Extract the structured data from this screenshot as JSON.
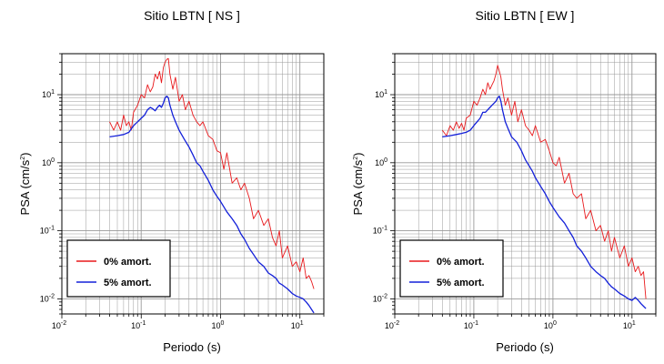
{
  "colors": {
    "undamped": "#e8191c",
    "damped": "#1320d9",
    "grid": "#999999",
    "frame": "#000000"
  },
  "chart_data": [
    {
      "type": "line",
      "title": "Sitio LBTN [ NS ]",
      "xlabel": "Periodo (s)",
      "ylabel": "PSA (cm/s2)",
      "ylabel_base": "PSA (cm/s",
      "ylabel_sup": "2",
      "ylabel_tail": ")",
      "xscale": "log",
      "yscale": "log",
      "xlim": [
        0.01,
        20
      ],
      "ylim": [
        0.006,
        40
      ],
      "x_ticks": [
        {
          "base": "10",
          "exp": "-2"
        },
        {
          "base": "10",
          "exp": "-1"
        },
        {
          "base": "10",
          "exp": "0"
        },
        {
          "base": "10",
          "exp": "1"
        }
      ],
      "y_ticks": [
        {
          "base": "10",
          "exp": "-2"
        },
        {
          "base": "10",
          "exp": "-1"
        },
        {
          "base": "10",
          "exp": "0"
        },
        {
          "base": "10",
          "exp": "1"
        }
      ],
      "grid": true,
      "legend": "bottom-left",
      "series": [
        {
          "name": "0% amort.",
          "color": "#e8191c",
          "x": [
            0.04,
            0.045,
            0.05,
            0.055,
            0.06,
            0.065,
            0.07,
            0.075,
            0.08,
            0.09,
            0.1,
            0.11,
            0.12,
            0.13,
            0.14,
            0.15,
            0.16,
            0.17,
            0.18,
            0.19,
            0.2,
            0.21,
            0.22,
            0.23,
            0.25,
            0.27,
            0.3,
            0.33,
            0.36,
            0.4,
            0.45,
            0.5,
            0.55,
            0.6,
            0.7,
            0.8,
            0.9,
            1.0,
            1.1,
            1.2,
            1.4,
            1.6,
            1.8,
            2.0,
            2.3,
            2.6,
            3.0,
            3.5,
            4.0,
            4.5,
            5.0,
            5.5,
            6,
            7,
            8,
            9,
            10,
            11,
            12,
            13,
            14,
            15
          ],
          "y": [
            4,
            3,
            4,
            3,
            5,
            3.5,
            4,
            3,
            5.5,
            7,
            10,
            9,
            14,
            11,
            13,
            20,
            17,
            22,
            15,
            25,
            30,
            33,
            34,
            20,
            12,
            18,
            8,
            10,
            6,
            8,
            5,
            4,
            3.5,
            4,
            2.5,
            2.2,
            1.5,
            1.4,
            0.8,
            1.4,
            0.5,
            0.6,
            0.4,
            0.5,
            0.3,
            0.15,
            0.2,
            0.12,
            0.15,
            0.08,
            0.06,
            0.1,
            0.04,
            0.06,
            0.03,
            0.035,
            0.025,
            0.04,
            0.02,
            0.022,
            0.018,
            0.014
          ]
        },
        {
          "name": "5% amort.",
          "color": "#1320d9",
          "x": [
            0.04,
            0.05,
            0.06,
            0.07,
            0.08,
            0.09,
            0.1,
            0.11,
            0.12,
            0.13,
            0.14,
            0.15,
            0.16,
            0.17,
            0.18,
            0.19,
            0.2,
            0.21,
            0.22,
            0.23,
            0.25,
            0.27,
            0.3,
            0.35,
            0.4,
            0.45,
            0.5,
            0.55,
            0.6,
            0.7,
            0.8,
            0.9,
            1.0,
            1.2,
            1.4,
            1.6,
            1.8,
            2.0,
            2.3,
            2.6,
            3.0,
            3.5,
            4.0,
            4.5,
            5.0,
            5.5,
            6,
            7,
            8,
            9,
            10,
            11,
            12,
            13,
            14,
            15
          ],
          "y": [
            2.4,
            2.5,
            2.6,
            2.8,
            3.5,
            4,
            4.5,
            5,
            6,
            6.5,
            6.2,
            5.8,
            6.5,
            7,
            6.5,
            7.5,
            9,
            9.5,
            9,
            7,
            5,
            4,
            3,
            2.2,
            1.7,
            1.3,
            1.0,
            0.9,
            0.75,
            0.55,
            0.4,
            0.32,
            0.27,
            0.19,
            0.15,
            0.12,
            0.09,
            0.075,
            0.055,
            0.045,
            0.035,
            0.03,
            0.024,
            0.022,
            0.02,
            0.017,
            0.016,
            0.014,
            0.012,
            0.011,
            0.0105,
            0.01,
            0.009,
            0.008,
            0.007,
            0.0062
          ]
        }
      ]
    },
    {
      "type": "line",
      "title": "Sitio LBTN [ EW ]",
      "xlabel": "Periodo (s)",
      "ylabel": "PSA (cm/s2)",
      "ylabel_base": "PSA (cm/s",
      "ylabel_sup": "2",
      "ylabel_tail": ")",
      "xscale": "log",
      "yscale": "log",
      "xlim": [
        0.01,
        20
      ],
      "ylim": [
        0.006,
        40
      ],
      "x_ticks": [
        {
          "base": "10",
          "exp": "-2"
        },
        {
          "base": "10",
          "exp": "-1"
        },
        {
          "base": "10",
          "exp": "0"
        },
        {
          "base": "10",
          "exp": "1"
        }
      ],
      "y_ticks": [
        {
          "base": "10",
          "exp": "-2"
        },
        {
          "base": "10",
          "exp": "-1"
        },
        {
          "base": "10",
          "exp": "0"
        },
        {
          "base": "10",
          "exp": "1"
        }
      ],
      "grid": true,
      "legend": "bottom-left",
      "series": [
        {
          "name": "0% amort.",
          "color": "#e8191c",
          "x": [
            0.04,
            0.045,
            0.05,
            0.055,
            0.06,
            0.065,
            0.07,
            0.075,
            0.08,
            0.09,
            0.1,
            0.11,
            0.12,
            0.13,
            0.14,
            0.15,
            0.16,
            0.17,
            0.18,
            0.19,
            0.2,
            0.21,
            0.22,
            0.23,
            0.25,
            0.27,
            0.3,
            0.33,
            0.36,
            0.4,
            0.45,
            0.5,
            0.55,
            0.6,
            0.7,
            0.8,
            0.9,
            1.0,
            1.1,
            1.2,
            1.4,
            1.6,
            1.8,
            2.0,
            2.3,
            2.6,
            3.0,
            3.5,
            4.0,
            4.5,
            5.0,
            5.5,
            6,
            7,
            8,
            9,
            10,
            11,
            12,
            13,
            14,
            15
          ],
          "y": [
            3,
            2.5,
            3.5,
            3,
            4,
            3.2,
            3.8,
            3,
            4.5,
            5,
            8,
            7,
            9,
            12,
            10,
            15,
            12,
            14,
            16,
            20,
            27,
            22,
            18,
            12,
            7,
            9,
            5,
            8,
            4,
            6,
            3.5,
            3,
            2.5,
            3.5,
            2,
            2.2,
            1.5,
            1.0,
            0.9,
            1.2,
            0.5,
            0.7,
            0.35,
            0.3,
            0.35,
            0.15,
            0.2,
            0.1,
            0.12,
            0.07,
            0.1,
            0.05,
            0.08,
            0.04,
            0.06,
            0.03,
            0.04,
            0.025,
            0.03,
            0.022,
            0.025,
            0.01
          ]
        },
        {
          "name": "5% amort.",
          "color": "#1320d9",
          "x": [
            0.04,
            0.05,
            0.06,
            0.07,
            0.08,
            0.09,
            0.1,
            0.11,
            0.12,
            0.13,
            0.14,
            0.15,
            0.16,
            0.17,
            0.18,
            0.19,
            0.2,
            0.21,
            0.22,
            0.23,
            0.25,
            0.27,
            0.3,
            0.35,
            0.4,
            0.45,
            0.5,
            0.55,
            0.6,
            0.7,
            0.8,
            0.9,
            1.0,
            1.2,
            1.4,
            1.6,
            1.8,
            2.0,
            2.3,
            2.6,
            3.0,
            3.5,
            4.0,
            4.5,
            5.0,
            5.5,
            6,
            7,
            8,
            9,
            10,
            11,
            12,
            13,
            14,
            15
          ],
          "y": [
            2.4,
            2.5,
            2.6,
            2.7,
            2.8,
            3.0,
            3.5,
            4,
            4.5,
            5.5,
            5.5,
            6,
            6.5,
            7,
            7.5,
            8,
            9,
            9.5,
            8,
            6,
            4,
            3.2,
            2.4,
            2.0,
            1.5,
            1.1,
            0.9,
            0.75,
            0.6,
            0.45,
            0.35,
            0.27,
            0.22,
            0.16,
            0.13,
            0.1,
            0.08,
            0.06,
            0.05,
            0.04,
            0.03,
            0.025,
            0.022,
            0.02,
            0.017,
            0.015,
            0.014,
            0.012,
            0.011,
            0.01,
            0.0095,
            0.0105,
            0.0095,
            0.0085,
            0.0078,
            0.0072
          ]
        }
      ]
    }
  ]
}
